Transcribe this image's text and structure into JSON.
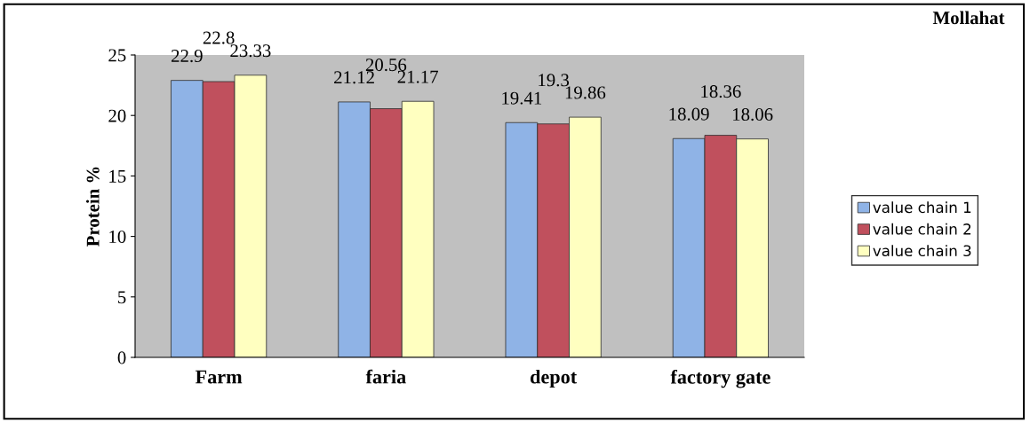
{
  "chart_data": {
    "type": "bar",
    "title": "Mollahat",
    "ylabel": "Protein %",
    "categories": [
      "Farm",
      "faria",
      "depot",
      "factory gate"
    ],
    "series": [
      {
        "name": "value chain 1",
        "color": "#8fb3e6",
        "values": [
          22.9,
          21.12,
          19.41,
          18.09
        ]
      },
      {
        "name": "value chain 2",
        "color": "#c0505d",
        "values": [
          22.8,
          20.56,
          19.3,
          18.36
        ]
      },
      {
        "name": "value chain 3",
        "color": "#ffffc0",
        "values": [
          23.33,
          21.17,
          19.86,
          18.06
        ]
      }
    ],
    "ylim": [
      0,
      25
    ],
    "yticks": [
      0,
      5,
      10,
      15,
      20,
      25
    ],
    "grid": false,
    "legend": "right",
    "data_labels": true
  }
}
